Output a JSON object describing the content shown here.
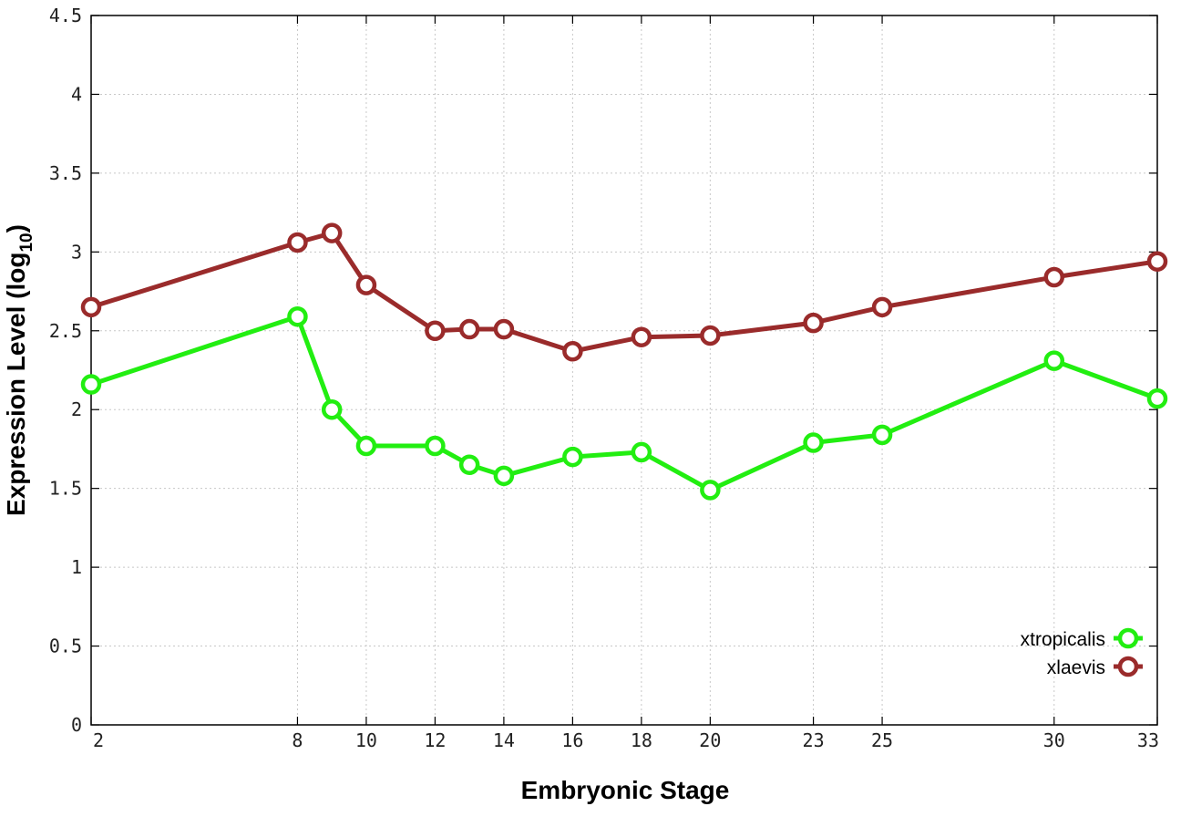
{
  "chart_data": {
    "type": "line",
    "title": "",
    "xlabel": "Embryonic Stage",
    "ylabel_main": "Expression Level (log",
    "ylabel_sub": "10",
    "ylabel_end": ")",
    "xlim": [
      2,
      33
    ],
    "ylim": [
      0,
      4.5
    ],
    "x_ticks": [
      2,
      8,
      10,
      12,
      14,
      16,
      18,
      20,
      23,
      25,
      30,
      33
    ],
    "x_tick_labels": [
      "2",
      "8",
      "10",
      "12",
      "14",
      "16",
      "18",
      "20",
      "23",
      "25",
      "30",
      "33"
    ],
    "y_ticks": [
      0,
      0.5,
      1,
      1.5,
      2,
      2.5,
      3,
      3.5,
      4,
      4.5
    ],
    "y_tick_labels": [
      "0",
      "0.5",
      "1",
      "1.5",
      "2",
      "2.5",
      "3",
      "3.5",
      "4",
      "4.5"
    ],
    "grid": true,
    "legend_position": "bottom-right",
    "x": [
      2,
      8,
      9,
      10,
      12,
      13,
      14,
      16,
      18,
      20,
      23,
      25,
      30,
      33
    ],
    "series": [
      {
        "name": "xtropicalis",
        "color": "#22ee11",
        "values": [
          2.16,
          2.59,
          2.0,
          1.77,
          1.77,
          1.65,
          1.58,
          1.7,
          1.73,
          1.49,
          1.79,
          1.84,
          2.31,
          2.07
        ]
      },
      {
        "name": "xlaevis",
        "color": "#9a2b2b",
        "values": [
          2.65,
          3.06,
          3.12,
          2.79,
          2.5,
          2.51,
          2.51,
          2.37,
          2.46,
          2.47,
          2.55,
          2.65,
          2.84,
          2.94
        ]
      }
    ]
  }
}
